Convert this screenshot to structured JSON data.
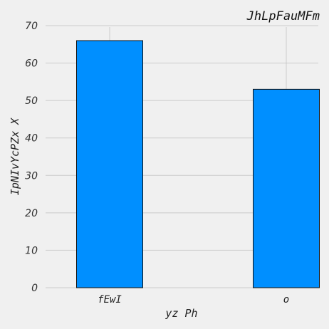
{
  "chart_data": {
    "type": "bar",
    "title": "JhLpFauMFm",
    "xlabel": "yz Ph",
    "ylabel": "IpNIvYcPZx X",
    "categories": [
      "fEwI",
      "o"
    ],
    "values": [
      66,
      53
    ],
    "ylim": [
      0,
      70
    ],
    "yticks": [
      0,
      10,
      20,
      30,
      40,
      50,
      60,
      70
    ],
    "grid": true,
    "bar_color": "#008fff",
    "bar_edge_color": "#111111",
    "background_color": "#f0f0f0",
    "grid_color": "#cbcbcb"
  }
}
